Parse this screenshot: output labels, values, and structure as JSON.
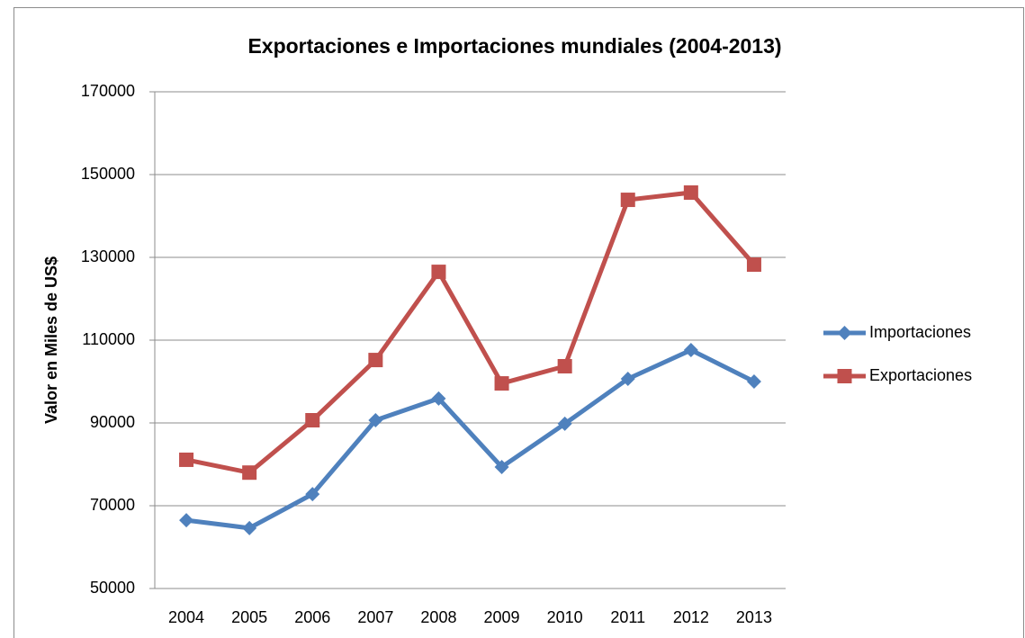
{
  "chart_data": {
    "type": "line",
    "title": "Exportaciones e Importaciones mundiales (2004-2013)",
    "y_label": "Valor en Miles de US$",
    "categories": [
      "2004",
      "2005",
      "2006",
      "2007",
      "2008",
      "2009",
      "2010",
      "2011",
      "2012",
      "2013"
    ],
    "series": [
      {
        "name": "Importaciones",
        "color": "#4f81bd",
        "marker": "diamond",
        "values": [
          66500,
          64600,
          72800,
          90650,
          95900,
          79350,
          89800,
          100650,
          107600,
          100000
        ]
      },
      {
        "name": "Exportaciones",
        "color": "#c0504d",
        "marker": "square",
        "values": [
          81100,
          78000,
          90650,
          105200,
          126500,
          99550,
          103700,
          143900,
          145650,
          128250
        ]
      }
    ],
    "ylim": [
      50000,
      170000
    ],
    "yticks": [
      50000,
      70000,
      90000,
      110000,
      130000,
      150000,
      170000
    ],
    "grid": true,
    "legend": "right"
  }
}
